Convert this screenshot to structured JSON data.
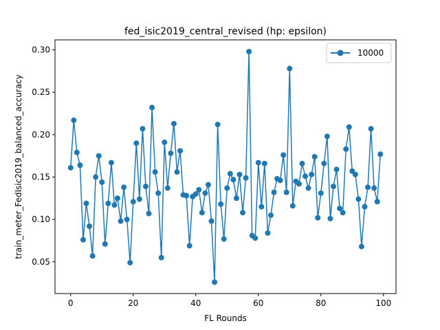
{
  "chart_data": {
    "type": "line",
    "title": "fed_isic2019_central_revised (hp: epsilon)",
    "xlabel": "FL Rounds",
    "ylabel": "train_meter_FedIsic2019_balanced_accuracy",
    "xlim": [
      -5,
      104
    ],
    "ylim": [
      0.0126,
      0.3118
    ],
    "xticks": [
      0,
      20,
      40,
      60,
      80,
      100
    ],
    "yticks": [
      0.05,
      0.1,
      0.15,
      0.2,
      0.25,
      0.3
    ],
    "ytick_labels": [
      "0.05",
      "0.10",
      "0.15",
      "0.20",
      "0.25",
      "0.30"
    ],
    "grid": false,
    "legend_position": "top-right",
    "series": [
      {
        "name": "10000",
        "color": "#1f77b4",
        "marker": "circle",
        "x": [
          0,
          1,
          2,
          3,
          4,
          5,
          6,
          7,
          8,
          9,
          10,
          11,
          12,
          13,
          14,
          15,
          16,
          17,
          18,
          19,
          20,
          21,
          22,
          23,
          24,
          25,
          26,
          27,
          28,
          29,
          30,
          31,
          32,
          33,
          34,
          35,
          36,
          37,
          38,
          39,
          40,
          41,
          42,
          43,
          44,
          45,
          46,
          47,
          48,
          49,
          50,
          51,
          52,
          53,
          54,
          55,
          56,
          57,
          58,
          59,
          60,
          61,
          62,
          63,
          64,
          65,
          66,
          67,
          68,
          69,
          70,
          71,
          72,
          73,
          74,
          75,
          76,
          77,
          78,
          79,
          80,
          81,
          82,
          83,
          84,
          85,
          86,
          87,
          88,
          89,
          90,
          91,
          92,
          93,
          94,
          95,
          96,
          97,
          98,
          99
        ],
        "values": [
          0.161,
          0.217,
          0.179,
          0.164,
          0.076,
          0.119,
          0.092,
          0.057,
          0.15,
          0.175,
          0.144,
          0.071,
          0.119,
          0.167,
          0.117,
          0.125,
          0.098,
          0.138,
          0.1,
          0.049,
          0.121,
          0.19,
          0.124,
          0.207,
          0.139,
          0.107,
          0.232,
          0.156,
          0.131,
          0.055,
          0.191,
          0.137,
          0.178,
          0.213,
          0.156,
          0.181,
          0.129,
          0.128,
          0.069,
          0.127,
          0.13,
          0.135,
          0.108,
          0.131,
          0.141,
          0.098,
          0.026,
          0.212,
          0.118,
          0.077,
          0.137,
          0.154,
          0.147,
          0.125,
          0.153,
          0.108,
          0.149,
          0.298,
          0.081,
          0.078,
          0.167,
          0.115,
          0.166,
          0.084,
          0.105,
          0.132,
          0.148,
          0.146,
          0.176,
          0.132,
          0.278,
          0.116,
          0.145,
          0.142,
          0.166,
          0.151,
          0.137,
          0.153,
          0.174,
          0.102,
          0.131,
          0.166,
          0.198,
          0.101,
          0.139,
          0.159,
          0.113,
          0.108,
          0.183,
          0.209,
          0.157,
          0.153,
          0.124,
          0.068,
          0.115,
          0.138,
          0.207,
          0.137,
          0.121,
          0.177
        ]
      }
    ]
  }
}
